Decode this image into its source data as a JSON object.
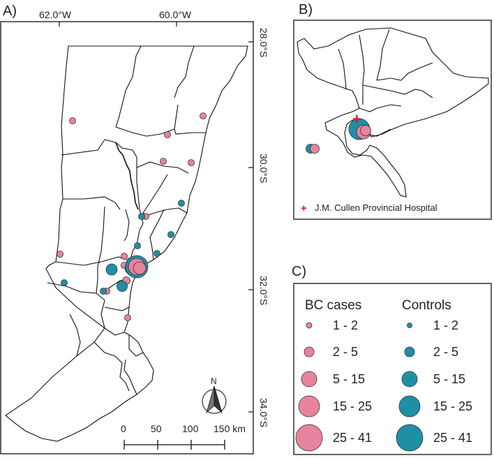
{
  "panels": {
    "a_label": "A)",
    "b_label": "B)",
    "c_label": "C)"
  },
  "map_a": {
    "lon_labels": [
      "62.0°W",
      "60.0°W"
    ],
    "lat_labels": [
      "28.0°S",
      "30.0°S",
      "32.0°S",
      "34.0°S"
    ],
    "north_label": "N",
    "scale": {
      "ticks": [
        "0",
        "50",
        "100",
        "150 km"
      ]
    }
  },
  "map_b": {
    "hospital_marker": "+",
    "hospital_label": "J.M. Cullen Provincial Hospital"
  },
  "legend": {
    "cases_title": "BC cases",
    "controls_title": "Controls",
    "classes": [
      "1 - 2",
      "2 - 5",
      "5 - 15",
      "15 - 25",
      "25 - 41"
    ]
  },
  "colors": {
    "cases": "#e8839e",
    "controls": "#1f8fa6",
    "hospital": "#e0191d",
    "outline": "#111111"
  }
}
